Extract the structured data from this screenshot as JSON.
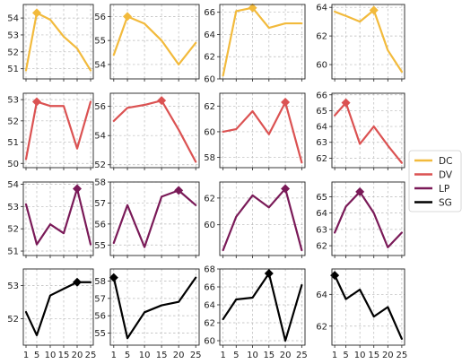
{
  "chart_data": {
    "type": "line",
    "layout": "4x4 grid",
    "x": [
      1,
      5,
      10,
      15,
      20,
      25
    ],
    "x_tick_labels": [
      "1",
      "5",
      "10",
      "15",
      "20",
      "25"
    ],
    "grid": true,
    "legend": {
      "placement": "right",
      "entries": [
        {
          "name": "DC",
          "color": "#F2BA3C"
        },
        {
          "name": "DV",
          "color": "#DB5252"
        },
        {
          "name": "LP",
          "color": "#7A1A58"
        },
        {
          "name": "SG",
          "color": "#000000"
        }
      ]
    },
    "panels": [
      {
        "series": "DC",
        "col": 1,
        "y": [
          50.9,
          54.3,
          53.9,
          52.9,
          52.2,
          50.9
        ],
        "ylim": [
          50.4,
          54.8
        ],
        "yticks": [
          51,
          52,
          53,
          54
        ],
        "marker_index": 1
      },
      {
        "series": "DC",
        "col": 2,
        "y": [
          54.4,
          56.0,
          55.7,
          55.0,
          54.0,
          54.9
        ],
        "ylim": [
          53.4,
          56.5
        ],
        "yticks": [
          54,
          55,
          56
        ],
        "marker_index": 1
      },
      {
        "series": "DC",
        "col": 3,
        "y": [
          60.3,
          66.1,
          66.4,
          64.6,
          65.0,
          65.0
        ],
        "ylim": [
          60.0,
          66.7
        ],
        "yticks": [
          60,
          62,
          64,
          66
        ],
        "marker_index": 2
      },
      {
        "series": "DC",
        "col": 4,
        "y": [
          63.7,
          63.4,
          63.0,
          63.8,
          61.0,
          59.5
        ],
        "ylim": [
          59.0,
          64.2
        ],
        "yticks": [
          60,
          62,
          64
        ],
        "marker_index": 3
      },
      {
        "series": "DV",
        "col": 1,
        "y": [
          50.2,
          52.9,
          52.7,
          52.7,
          50.7,
          52.9
        ],
        "ylim": [
          49.8,
          53.3
        ],
        "yticks": [
          50,
          51,
          52,
          53
        ],
        "marker_index": 1
      },
      {
        "series": "DV",
        "col": 2,
        "y": [
          55.0,
          55.9,
          56.1,
          56.4,
          54.4,
          52.2
        ],
        "ylim": [
          51.8,
          56.9
        ],
        "yticks": [
          52,
          54,
          56
        ],
        "marker_index": 3
      },
      {
        "series": "DV",
        "col": 3,
        "y": [
          60.0,
          60.2,
          61.6,
          59.8,
          62.3,
          57.6
        ],
        "ylim": [
          57.2,
          63.0
        ],
        "yticks": [
          58,
          60,
          62
        ],
        "marker_index": 4
      },
      {
        "series": "DV",
        "col": 4,
        "y": [
          64.7,
          65.5,
          62.9,
          64.0,
          62.8,
          61.7
        ],
        "ylim": [
          61.4,
          66.1
        ],
        "yticks": [
          62,
          63,
          64,
          65,
          66
        ],
        "marker_index": 1
      },
      {
        "series": "LP",
        "col": 1,
        "y": [
          53.1,
          51.3,
          52.2,
          51.8,
          53.8,
          51.3
        ],
        "ylim": [
          50.8,
          54.1
        ],
        "yticks": [
          51,
          52,
          53,
          54
        ],
        "marker_index": 4
      },
      {
        "series": "LP",
        "col": 2,
        "y": [
          55.1,
          56.9,
          54.9,
          57.3,
          57.6,
          56.9
        ],
        "ylim": [
          54.5,
          58.0
        ],
        "yticks": [
          55,
          56,
          57,
          58
        ],
        "marker_index": 4
      },
      {
        "series": "LP",
        "col": 3,
        "y": [
          58.1,
          60.6,
          62.2,
          61.3,
          62.7,
          58.1
        ],
        "ylim": [
          57.7,
          63.2
        ],
        "yticks": [
          60,
          62
        ],
        "marker_index": 4
      },
      {
        "series": "LP",
        "col": 4,
        "y": [
          62.8,
          64.4,
          65.3,
          64.0,
          61.9,
          62.8
        ],
        "ylim": [
          61.4,
          65.9
        ],
        "yticks": [
          62,
          63,
          64,
          65
        ],
        "marker_index": 2
      },
      {
        "series": "SG",
        "col": 1,
        "y": [
          52.2,
          51.5,
          52.7,
          52.9,
          53.1,
          53.1
        ],
        "ylim": [
          51.2,
          53.5
        ],
        "yticks": [
          52,
          53
        ],
        "marker_index": 4
      },
      {
        "series": "SG",
        "col": 2,
        "y": [
          58.2,
          54.7,
          56.2,
          56.6,
          56.8,
          58.2
        ],
        "ylim": [
          54.3,
          58.7
        ],
        "yticks": [
          55,
          56,
          57,
          58
        ],
        "marker_index": 0
      },
      {
        "series": "SG",
        "col": 3,
        "y": [
          62.4,
          64.6,
          64.8,
          67.5,
          60.0,
          66.2
        ],
        "ylim": [
          59.5,
          68.0
        ],
        "yticks": [
          60,
          62,
          64,
          66,
          68
        ],
        "marker_index": 3
      },
      {
        "series": "SG",
        "col": 4,
        "y": [
          65.2,
          63.7,
          64.3,
          62.6,
          63.2,
          61.2
        ],
        "ylim": [
          60.8,
          65.6
        ],
        "yticks": [
          62,
          64
        ],
        "marker_index": 0
      }
    ]
  }
}
